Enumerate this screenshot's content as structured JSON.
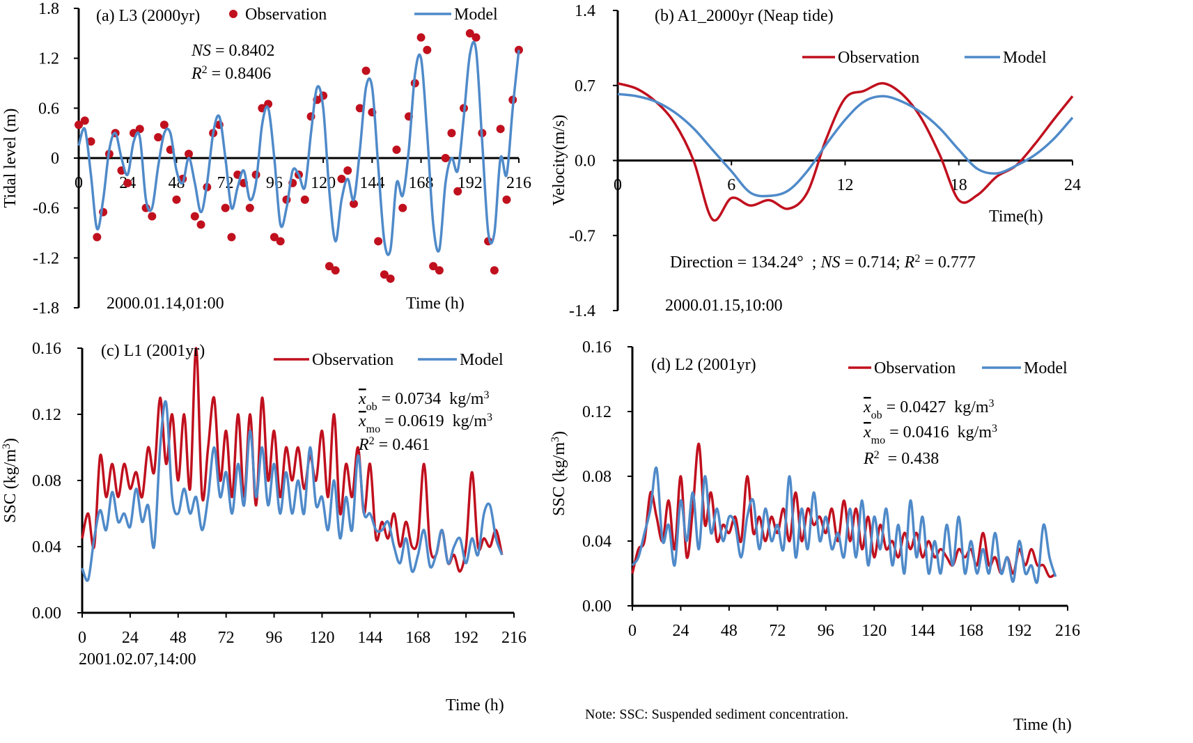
{
  "chart_data": [
    {
      "type": "line",
      "title": "(a) L3 (2000yr)",
      "ylabel": "Tidal level (m)",
      "xlabel": "Time (h)",
      "annotations": [
        {
          "parts": [
            {
              "text": "2000.01.14,01:00"
            }
          ]
        },
        {
          "parts": [
            {
              "text": "NS",
              "style": "italic"
            },
            {
              "text": " = 0.8402"
            }
          ]
        },
        {
          "parts": [
            {
              "text": "R",
              "style": "italic"
            },
            {
              "text": "2",
              "style": "sup"
            },
            {
              "text": " = 0.8406"
            }
          ]
        }
      ],
      "xlim": [
        0,
        216
      ],
      "xticks": [
        0,
        24,
        48,
        72,
        96,
        120,
        144,
        168,
        192,
        216
      ],
      "ylim": [
        -1.8,
        1.8
      ],
      "yticks": [
        -1.8,
        -1.2,
        -0.6,
        0,
        0.6,
        1.2,
        1.8
      ],
      "x": [
        0,
        3,
        6,
        9,
        12,
        15,
        18,
        21,
        24,
        27,
        30,
        33,
        36,
        39,
        42,
        45,
        48,
        51,
        54,
        57,
        60,
        63,
        66,
        69,
        72,
        75,
        78,
        81,
        84,
        87,
        90,
        93,
        96,
        99,
        102,
        105,
        108,
        111,
        114,
        117,
        120,
        123,
        126,
        129,
        132,
        135,
        138,
        141,
        144,
        147,
        150,
        153,
        156,
        159,
        162,
        165,
        168,
        171,
        174,
        177,
        180,
        183,
        186,
        189,
        192,
        195,
        198,
        201,
        204,
        207,
        210,
        213,
        216
      ],
      "series": [
        {
          "name": "Observation",
          "style": "markers",
          "color": "#c0101e",
          "values": [
            0.4,
            0.45,
            0.2,
            -0.95,
            -0.65,
            0.05,
            0.3,
            -0.15,
            -0.3,
            0.3,
            0.35,
            -0.6,
            -0.7,
            0.25,
            0.4,
            0.1,
            -0.5,
            -0.25,
            0.05,
            -0.7,
            -0.8,
            -0.35,
            0.3,
            0.4,
            -0.6,
            -0.95,
            -0.2,
            -0.3,
            -0.6,
            -0.2,
            0.6,
            0.65,
            -0.95,
            -1.0,
            -0.5,
            -0.3,
            -0.2,
            -0.5,
            0.5,
            0.7,
            0.75,
            -1.3,
            -1.35,
            -0.25,
            -0.15,
            -0.55,
            0.6,
            1.05,
            0.55,
            -1.0,
            -1.4,
            -1.45,
            0.1,
            -0.6,
            0.5,
            0.9,
            1.45,
            1.3,
            -1.3,
            -1.35,
            0.0,
            0.3,
            -0.4,
            0.6,
            1.5,
            1.45,
            0.3,
            -1.0,
            -1.35,
            0.35,
            -0.5,
            0.7,
            1.3
          ]
        },
        {
          "name": "Model",
          "style": "line",
          "color": "#4f8ac9",
          "values": [
            0.15,
            0.35,
            -0.2,
            -0.85,
            -0.5,
            0.1,
            0.3,
            0.0,
            -0.2,
            0.2,
            0.25,
            -0.5,
            -0.6,
            -0.1,
            0.3,
            0.3,
            -0.15,
            -0.3,
            0.0,
            -0.3,
            -0.65,
            -0.3,
            0.3,
            0.5,
            0.0,
            -0.6,
            -0.35,
            -0.15,
            -0.5,
            -0.3,
            0.4,
            0.6,
            0.0,
            -0.8,
            -0.6,
            -0.15,
            -0.2,
            -0.35,
            0.3,
            0.85,
            0.6,
            -0.4,
            -1.0,
            -0.5,
            -0.25,
            -0.5,
            0.1,
            0.85,
            0.85,
            -0.1,
            -1.0,
            -1.1,
            -0.3,
            -0.45,
            0.1,
            1.0,
            1.2,
            0.3,
            -0.8,
            -1.1,
            -0.3,
            0.0,
            -0.15,
            0.5,
            1.25,
            1.3,
            0.2,
            -0.9,
            -0.9,
            0.0,
            -0.2,
            0.6,
            1.3
          ]
        }
      ]
    },
    {
      "type": "line",
      "title": "(b) A1_2000yr (Neap tide)",
      "ylabel": "Velocity(m/s)",
      "xlabel": "Time(h)",
      "annotations": [
        {
          "parts": [
            {
              "text": "Direction = 134.24°  ; "
            },
            {
              "text": "NS",
              "style": "italic"
            },
            {
              "text": " = 0.714; "
            },
            {
              "text": "R",
              "style": "italic"
            },
            {
              "text": "2",
              "style": "sup"
            },
            {
              "text": " = 0.777"
            }
          ]
        },
        {
          "parts": [
            {
              "text": "2000.01.15,10:00"
            }
          ]
        }
      ],
      "xlim": [
        0,
        24
      ],
      "xticks": [
        0,
        6,
        12,
        18,
        24
      ],
      "ylim": [
        -1.4,
        1.4
      ],
      "yticks": [
        -1.4,
        -0.7,
        {
          "value": 0,
          "label": "0.0"
        },
        0.7,
        1.4
      ],
      "x": [
        0,
        1,
        2,
        3,
        4,
        5,
        6,
        7,
        8,
        9,
        10,
        11,
        12,
        13,
        14,
        15,
        16,
        17,
        18,
        19,
        20,
        21,
        22,
        23,
        24
      ],
      "series": [
        {
          "name": "Observation",
          "style": "line",
          "color": "#c0101e",
          "values": [
            0.72,
            0.67,
            0.55,
            0.35,
            0.0,
            -0.55,
            -0.35,
            -0.42,
            -0.37,
            -0.45,
            -0.3,
            0.2,
            0.58,
            0.65,
            0.72,
            0.62,
            0.4,
            0.05,
            -0.37,
            -0.32,
            -0.15,
            -0.05,
            0.15,
            0.38,
            0.6
          ]
        },
        {
          "name": "Model",
          "style": "line",
          "color": "#4f8ac9",
          "values": [
            0.62,
            0.6,
            0.55,
            0.45,
            0.3,
            0.1,
            -0.1,
            -0.3,
            -0.33,
            -0.28,
            -0.1,
            0.15,
            0.38,
            0.55,
            0.6,
            0.55,
            0.45,
            0.3,
            0.1,
            -0.08,
            -0.12,
            -0.05,
            0.05,
            0.2,
            0.4
          ]
        }
      ]
    },
    {
      "type": "line",
      "title": "(c) L1 (2001yr)",
      "ylabel": {
        "parts": [
          {
            "text": "SSC (kg/m"
          },
          {
            "text": "3",
            "style": "sup"
          },
          {
            "text": ")"
          }
        ]
      },
      "xlabel": "Time (h)",
      "annotations": [
        {
          "parts": [
            {
              "text": "x",
              "style": "overline-italic"
            },
            {
              "text": "ob",
              "style": "sub"
            },
            {
              "text": " = 0.0734  kg/m"
            },
            {
              "text": "3",
              "style": "sup"
            }
          ]
        },
        {
          "parts": [
            {
              "text": "x",
              "style": "overline-italic"
            },
            {
              "text": "mo",
              "style": "sub"
            },
            {
              "text": " = 0.0619  kg/m"
            },
            {
              "text": "3",
              "style": "sup"
            }
          ]
        },
        {
          "parts": [
            {
              "text": "R",
              "style": "italic"
            },
            {
              "text": "2",
              "style": "sup"
            },
            {
              "text": " = 0.461"
            }
          ]
        },
        {
          "parts": [
            {
              "text": "2001.02.07,14:00"
            }
          ]
        }
      ],
      "xlim": [
        0,
        216
      ],
      "xticks": [
        0,
        24,
        48,
        72,
        96,
        120,
        144,
        168,
        192,
        216
      ],
      "ylim": [
        0,
        0.16
      ],
      "yticks": [
        {
          "value": 0,
          "label": "0.00"
        },
        0.04,
        0.08,
        0.12,
        0.16
      ],
      "x": [
        0,
        3,
        6,
        9,
        12,
        15,
        18,
        21,
        24,
        27,
        30,
        33,
        36,
        39,
        42,
        45,
        48,
        51,
        54,
        57,
        60,
        63,
        66,
        69,
        72,
        75,
        78,
        81,
        84,
        87,
        90,
        93,
        96,
        99,
        102,
        105,
        108,
        111,
        114,
        117,
        120,
        123,
        126,
        129,
        132,
        135,
        138,
        141,
        144,
        147,
        150,
        153,
        156,
        159,
        162,
        165,
        168,
        171,
        174,
        177,
        180,
        183,
        186,
        189,
        192,
        195,
        198,
        201,
        204,
        207,
        210
      ],
      "series": [
        {
          "name": "Observation",
          "style": "line",
          "color": "#c0101e",
          "values": [
            0.045,
            0.06,
            0.04,
            0.095,
            0.07,
            0.09,
            0.07,
            0.09,
            0.075,
            0.085,
            0.07,
            0.1,
            0.085,
            0.13,
            0.09,
            0.12,
            0.08,
            0.12,
            0.075,
            0.16,
            0.07,
            0.1,
            0.13,
            0.08,
            0.11,
            0.07,
            0.12,
            0.07,
            0.12,
            0.065,
            0.13,
            0.08,
            0.11,
            0.07,
            0.1,
            0.08,
            0.1,
            0.075,
            0.095,
            0.08,
            0.11,
            0.07,
            0.12,
            0.06,
            0.09,
            0.07,
            0.1,
            0.06,
            0.09,
            0.045,
            0.055,
            0.045,
            0.06,
            0.04,
            0.055,
            0.04,
            0.045,
            0.09,
            0.04,
            0.035,
            0.05,
            0.03,
            0.035,
            0.025,
            0.04,
            0.085,
            0.04,
            0.045,
            0.04,
            0.05,
            0.035
          ]
        },
        {
          "name": "Model",
          "style": "line",
          "color": "#4f8ac9",
          "values": [
            0.027,
            0.02,
            0.045,
            0.062,
            0.05,
            0.073,
            0.055,
            0.06,
            0.052,
            0.075,
            0.055,
            0.065,
            0.04,
            0.1,
            0.127,
            0.07,
            0.06,
            0.075,
            0.06,
            0.07,
            0.05,
            0.07,
            0.1,
            0.07,
            0.085,
            0.06,
            0.09,
            0.065,
            0.11,
            0.07,
            0.1,
            0.065,
            0.09,
            0.06,
            0.085,
            0.06,
            0.08,
            0.06,
            0.1,
            0.065,
            0.07,
            0.05,
            0.08,
            0.045,
            0.07,
            0.05,
            0.095,
            0.06,
            0.06,
            0.05,
            0.05,
            0.055,
            0.04,
            0.03,
            0.045,
            0.025,
            0.035,
            0.05,
            0.028,
            0.035,
            0.05,
            0.03,
            0.04,
            0.045,
            0.03,
            0.045,
            0.035,
            0.06,
            0.065,
            0.045,
            0.035
          ]
        }
      ]
    },
    {
      "type": "line",
      "title": "(d) L2 (2001yr)",
      "ylabel": {
        "parts": [
          {
            "text": "SSC (kg/m"
          },
          {
            "text": "3",
            "style": "sup"
          },
          {
            "text": ")"
          }
        ]
      },
      "xlabel": "Time (h)",
      "annotations": [
        {
          "parts": [
            {
              "text": "x",
              "style": "overline-italic"
            },
            {
              "text": "ob",
              "style": "sub"
            },
            {
              "text": " = 0.0427  kg/m"
            },
            {
              "text": "3",
              "style": "sup"
            }
          ]
        },
        {
          "parts": [
            {
              "text": "x",
              "style": "overline-italic"
            },
            {
              "text": "mo",
              "style": "sub"
            },
            {
              "text": " = 0.0416  kg/m"
            },
            {
              "text": "3",
              "style": "sup"
            }
          ]
        },
        {
          "parts": [
            {
              "text": "R",
              "style": "italic"
            },
            {
              "text": "2",
              "style": "sup"
            },
            {
              "text": "  = 0.438"
            }
          ]
        }
      ],
      "xlim": [
        0,
        216
      ],
      "xticks": [
        0,
        24,
        48,
        72,
        96,
        120,
        144,
        168,
        192,
        216
      ],
      "ylim": [
        0,
        0.16
      ],
      "yticks": [
        {
          "value": 0,
          "label": "0.00"
        },
        0.04,
        0.08,
        0.12,
        0.16
      ],
      "x": [
        0,
        3,
        6,
        9,
        12,
        15,
        18,
        21,
        24,
        27,
        30,
        33,
        36,
        39,
        42,
        45,
        48,
        51,
        54,
        57,
        60,
        63,
        66,
        69,
        72,
        75,
        78,
        81,
        84,
        87,
        90,
        93,
        96,
        99,
        102,
        105,
        108,
        111,
        114,
        117,
        120,
        123,
        126,
        129,
        132,
        135,
        138,
        141,
        144,
        147,
        150,
        153,
        156,
        159,
        162,
        165,
        168,
        171,
        174,
        177,
        180,
        183,
        186,
        189,
        192,
        195,
        198,
        201,
        204,
        207,
        210
      ],
      "series": [
        {
          "name": "Observation",
          "style": "line",
          "color": "#c0101e",
          "values": [
            0.02,
            0.035,
            0.04,
            0.07,
            0.055,
            0.04,
            0.065,
            0.035,
            0.08,
            0.03,
            0.06,
            0.1,
            0.05,
            0.07,
            0.04,
            0.05,
            0.045,
            0.055,
            0.04,
            0.08,
            0.045,
            0.055,
            0.04,
            0.055,
            0.045,
            0.06,
            0.04,
            0.07,
            0.04,
            0.06,
            0.05,
            0.055,
            0.045,
            0.06,
            0.04,
            0.065,
            0.04,
            0.06,
            0.035,
            0.055,
            0.03,
            0.05,
            0.035,
            0.04,
            0.03,
            0.045,
            0.035,
            0.045,
            0.03,
            0.04,
            0.03,
            0.035,
            0.03,
            0.025,
            0.035,
            0.03,
            0.035,
            0.025,
            0.045,
            0.025,
            0.03,
            0.02,
            0.03,
            0.02,
            0.035,
            0.025,
            0.035,
            0.025,
            0.025,
            0.018,
            0.02
          ]
        },
        {
          "name": "Model",
          "style": "line",
          "color": "#4f8ac9",
          "values": [
            0.025,
            0.03,
            0.045,
            0.06,
            0.085,
            0.04,
            0.05,
            0.025,
            0.065,
            0.04,
            0.07,
            0.035,
            0.08,
            0.045,
            0.06,
            0.04,
            0.055,
            0.05,
            0.03,
            0.055,
            0.065,
            0.035,
            0.06,
            0.04,
            0.05,
            0.035,
            0.08,
            0.03,
            0.06,
            0.035,
            0.07,
            0.04,
            0.055,
            0.035,
            0.045,
            0.03,
            0.06,
            0.03,
            0.065,
            0.025,
            0.055,
            0.035,
            0.06,
            0.025,
            0.05,
            0.02,
            0.065,
            0.03,
            0.055,
            0.02,
            0.04,
            0.02,
            0.05,
            0.025,
            0.055,
            0.02,
            0.04,
            0.02,
            0.035,
            0.02,
            0.045,
            0.02,
            0.03,
            0.015,
            0.04,
            0.02,
            0.025,
            0.015,
            0.05,
            0.03,
            0.018
          ]
        }
      ]
    }
  ],
  "note": "Note: SSC: Suspended sediment concentration."
}
